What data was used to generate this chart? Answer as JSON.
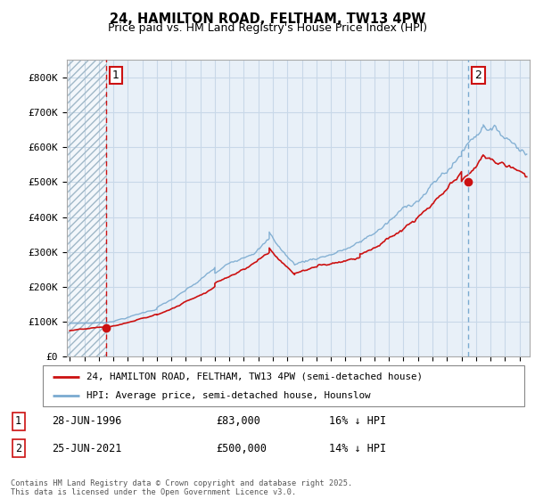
{
  "title1": "24, HAMILTON ROAD, FELTHAM, TW13 4PW",
  "title2": "Price paid vs. HM Land Registry's House Price Index (HPI)",
  "ylim": [
    0,
    850000
  ],
  "yticks": [
    0,
    100000,
    200000,
    300000,
    400000,
    500000,
    600000,
    700000,
    800000
  ],
  "ytick_labels": [
    "£0",
    "£100K",
    "£200K",
    "£300K",
    "£400K",
    "£500K",
    "£600K",
    "£700K",
    "£800K"
  ],
  "xlim_start": 1993.8,
  "xlim_end": 2025.7,
  "xticks": [
    1994,
    1995,
    1996,
    1997,
    1998,
    1999,
    2000,
    2001,
    2002,
    2003,
    2004,
    2005,
    2006,
    2007,
    2008,
    2009,
    2010,
    2011,
    2012,
    2013,
    2014,
    2015,
    2016,
    2017,
    2018,
    2019,
    2020,
    2021,
    2022,
    2023,
    2024,
    2025
  ],
  "hpi_color": "#7aaad0",
  "price_color": "#cc1111",
  "grid_color": "#c8d8e8",
  "bg_color": "#e8f0f8",
  "vline1_x": 1996.48,
  "vline2_x": 2021.48,
  "marker1_x": 1996.48,
  "marker1_y": 83000,
  "marker2_x": 2021.48,
  "marker2_y": 500000,
  "legend_line1": "24, HAMILTON ROAD, FELTHAM, TW13 4PW (semi-detached house)",
  "legend_line2": "HPI: Average price, semi-detached house, Hounslow",
  "label1_date": "28-JUN-1996",
  "label1_price": "£83,000",
  "label1_hpi": "16% ↓ HPI",
  "label2_date": "25-JUN-2021",
  "label2_price": "£500,000",
  "label2_hpi": "14% ↓ HPI",
  "footnote": "Contains HM Land Registry data © Crown copyright and database right 2025.\nThis data is licensed under the Open Government Licence v3.0."
}
